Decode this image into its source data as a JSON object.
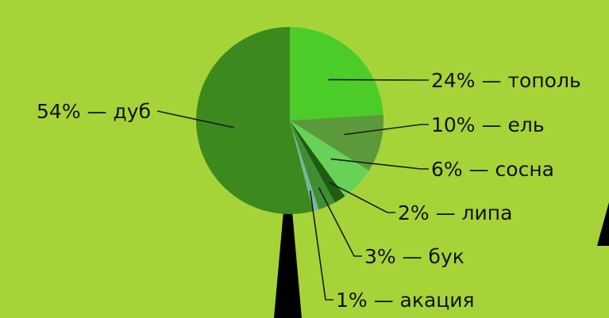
{
  "chart_data": {
    "type": "pie",
    "title": "",
    "slices": [
      {
        "label": "24% — тополь",
        "value": 24,
        "color": "#4ccc28"
      },
      {
        "label": "10% — ель",
        "value": 10,
        "color": "#5b9a3a"
      },
      {
        "label": "6% — сосна",
        "value": 6,
        "color": "#68d258"
      },
      {
        "label": "2% — липа",
        "value": 2,
        "color": "#1f5d12"
      },
      {
        "label": "3% — бук",
        "value": 3,
        "color": "#3f8f32"
      },
      {
        "label": "1% — акация",
        "value": 1,
        "color": "#79b6a0"
      },
      {
        "label": "54% — дуб",
        "value": 54,
        "color": "#3c8a1e"
      }
    ],
    "background": "#a6d438",
    "trunk_color": "#000000"
  }
}
